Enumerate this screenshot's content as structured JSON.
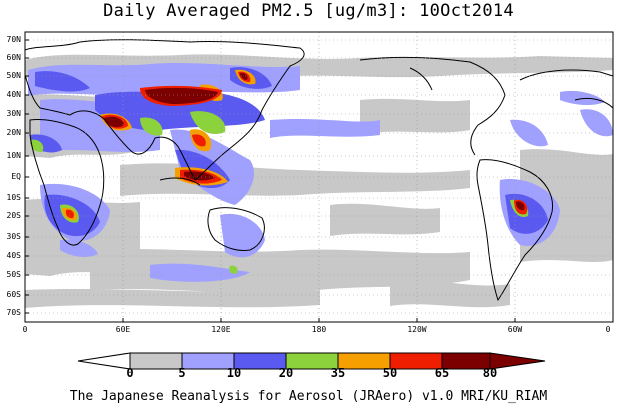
{
  "title": "Daily Averaged PM2.5 [ug/m3]: 10Oct2014",
  "footer": "The Japanese Reanalysis for Aerosol (JRAero) v1.0 MRI/KU_RIAM",
  "lat_labels": [
    "70N",
    "60N",
    "50N",
    "40N",
    "30N",
    "20N",
    "10N",
    "EQ",
    "10S",
    "20S",
    "30S",
    "40S",
    "50S",
    "60S",
    "70S"
  ],
  "lon_labels": [
    "0",
    "60E",
    "120E",
    "180",
    "120W",
    "60W",
    "0"
  ],
  "colorbar": {
    "labels": [
      "0",
      "5",
      "10",
      "20",
      "35",
      "50",
      "65",
      "80"
    ],
    "colors": [
      "#ffffff",
      "#c8c8c8",
      "#a0a0ff",
      "#5a5af0",
      "#8cd23c",
      "#f5a000",
      "#f01e00",
      "#7d0000"
    ]
  },
  "map_colors": {
    "ocean": "#ffffff",
    "coast": "#000000",
    "grid": "#9a9a9a"
  }
}
